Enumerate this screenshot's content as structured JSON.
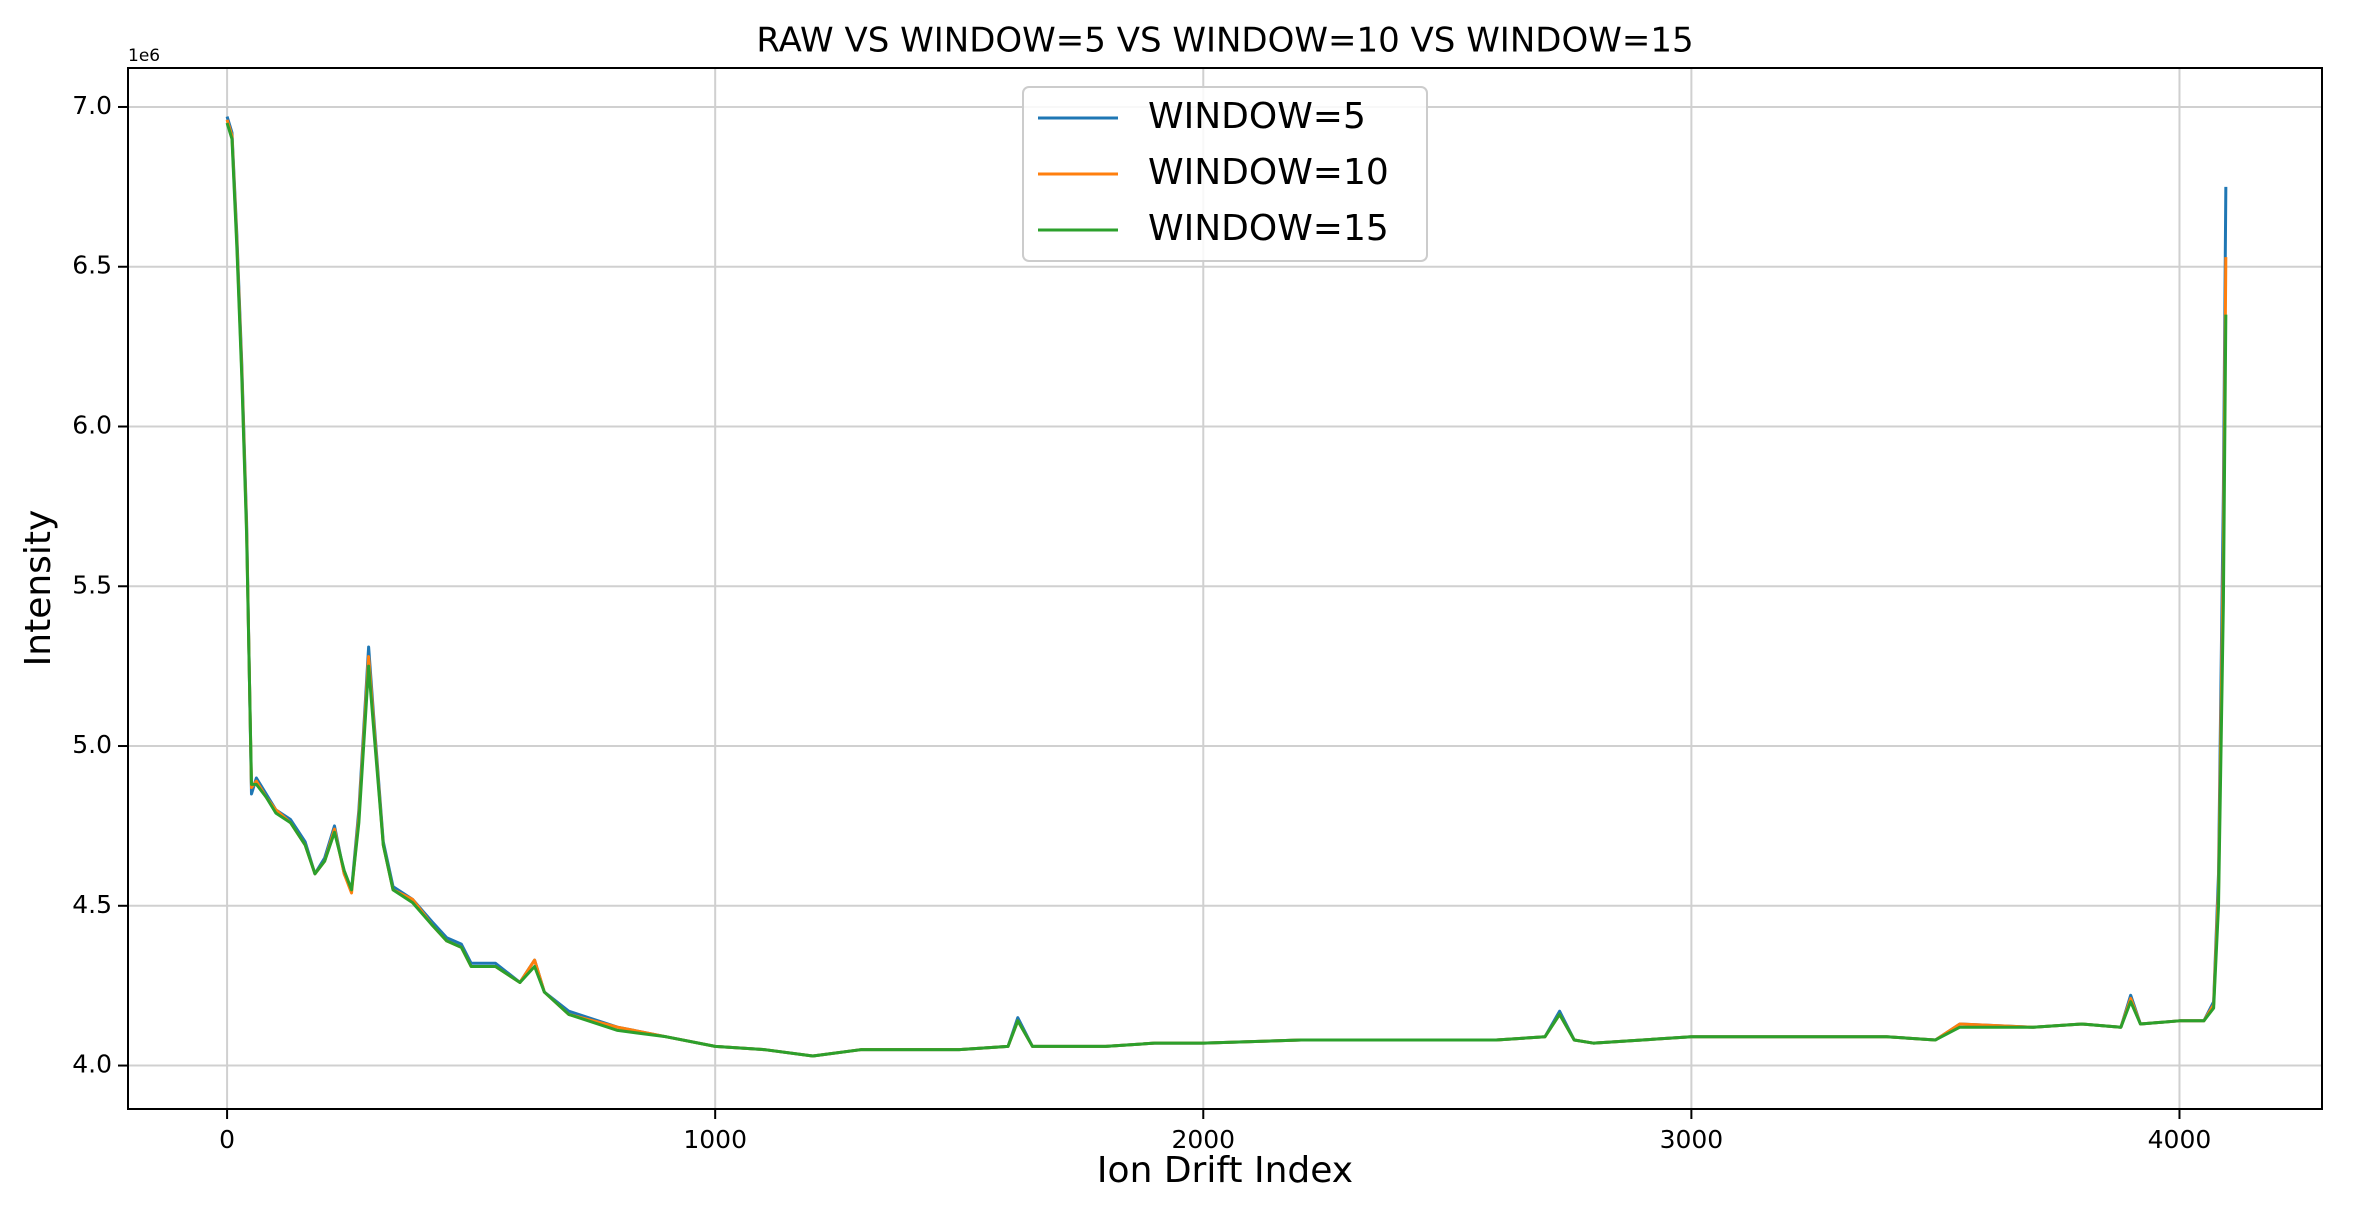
{
  "chart_data": {
    "type": "line",
    "title": "RAW VS WINDOW=5 VS WINDOW=10 VS WINDOW=15",
    "x_label": "Ion Drift Index",
    "y_label": "Intensity",
    "y_multiplier": "1e6",
    "xlim": [
      -203,
      4292
    ],
    "ylim": [
      3.864,
      7.122
    ],
    "xticks": [
      0,
      1000,
      2000,
      3000,
      4000
    ],
    "yticks": [
      {
        "value": 4,
        "label": "4.0"
      },
      {
        "value": 4.5,
        "label": "4.5"
      },
      {
        "value": 5,
        "label": "5.0"
      },
      {
        "value": 5.5,
        "label": "5.5"
      },
      {
        "value": 6,
        "label": "6.0"
      },
      {
        "value": 6.5,
        "label": "6.5"
      },
      {
        "value": 7,
        "label": "7.0"
      }
    ],
    "grid": true,
    "legend": "upper center",
    "x": [
      0,
      10,
      20,
      30,
      40,
      50,
      60,
      80,
      100,
      130,
      160,
      180,
      200,
      220,
      240,
      255,
      270,
      290,
      300,
      320,
      340,
      380,
      420,
      450,
      480,
      500,
      550,
      600,
      630,
      650,
      700,
      800,
      900,
      1000,
      1100,
      1200,
      1300,
      1400,
      1500,
      1600,
      1620,
      1650,
      1700,
      1800,
      1900,
      2000,
      2200,
      2400,
      2600,
      2700,
      2730,
      2760,
      2800,
      3000,
      3200,
      3400,
      3500,
      3550,
      3700,
      3800,
      3880,
      3900,
      3920,
      4000,
      4050,
      4070,
      4080,
      4090,
      4095
    ],
    "series": [
      {
        "name": "WINDOW=5",
        "color": "#1f77b4",
        "values": [
          6.97,
          6.92,
          6.6,
          6.2,
          5.7,
          4.85,
          4.9,
          4.85,
          4.8,
          4.77,
          4.7,
          4.6,
          4.65,
          4.75,
          4.6,
          4.55,
          4.8,
          5.31,
          5.1,
          4.7,
          4.56,
          4.52,
          4.45,
          4.4,
          4.38,
          4.32,
          4.32,
          4.26,
          4.33,
          4.23,
          4.17,
          4.12,
          4.09,
          4.06,
          4.05,
          4.03,
          4.05,
          4.05,
          4.05,
          4.06,
          4.15,
          4.06,
          4.06,
          4.06,
          4.07,
          4.07,
          4.08,
          4.08,
          4.08,
          4.09,
          4.17,
          4.08,
          4.07,
          4.09,
          4.09,
          4.09,
          4.08,
          4.13,
          4.12,
          4.13,
          4.12,
          4.22,
          4.13,
          4.14,
          4.14,
          4.2,
          4.6,
          5.8,
          6.75
        ]
      },
      {
        "name": "WINDOW=10",
        "color": "#ff7f0e",
        "values": [
          6.96,
          6.91,
          6.58,
          6.18,
          5.68,
          4.87,
          4.89,
          4.84,
          4.8,
          4.76,
          4.69,
          4.6,
          4.64,
          4.74,
          4.6,
          4.54,
          4.78,
          5.28,
          5.08,
          4.69,
          4.55,
          4.52,
          4.44,
          4.39,
          4.37,
          4.31,
          4.31,
          4.26,
          4.33,
          4.23,
          4.16,
          4.12,
          4.09,
          4.06,
          4.05,
          4.03,
          4.05,
          4.05,
          4.05,
          4.06,
          4.14,
          4.06,
          4.06,
          4.06,
          4.07,
          4.07,
          4.08,
          4.08,
          4.08,
          4.09,
          4.16,
          4.08,
          4.07,
          4.09,
          4.09,
          4.09,
          4.08,
          4.13,
          4.12,
          4.13,
          4.12,
          4.21,
          4.13,
          4.14,
          4.14,
          4.19,
          4.55,
          5.6,
          6.53
        ]
      },
      {
        "name": "WINDOW=15",
        "color": "#2ca02c",
        "values": [
          6.95,
          6.9,
          6.56,
          6.16,
          5.66,
          4.88,
          4.88,
          4.84,
          4.79,
          4.76,
          4.69,
          4.6,
          4.64,
          4.73,
          4.61,
          4.55,
          4.76,
          5.25,
          5.06,
          4.69,
          4.55,
          4.51,
          4.44,
          4.39,
          4.37,
          4.31,
          4.31,
          4.26,
          4.31,
          4.23,
          4.16,
          4.11,
          4.09,
          4.06,
          4.05,
          4.03,
          4.05,
          4.05,
          4.05,
          4.06,
          4.14,
          4.06,
          4.06,
          4.06,
          4.07,
          4.07,
          4.08,
          4.08,
          4.08,
          4.09,
          4.16,
          4.08,
          4.07,
          4.09,
          4.09,
          4.09,
          4.08,
          4.12,
          4.12,
          4.13,
          4.12,
          4.2,
          4.13,
          4.14,
          4.14,
          4.18,
          4.5,
          5.45,
          6.35
        ]
      }
    ]
  }
}
